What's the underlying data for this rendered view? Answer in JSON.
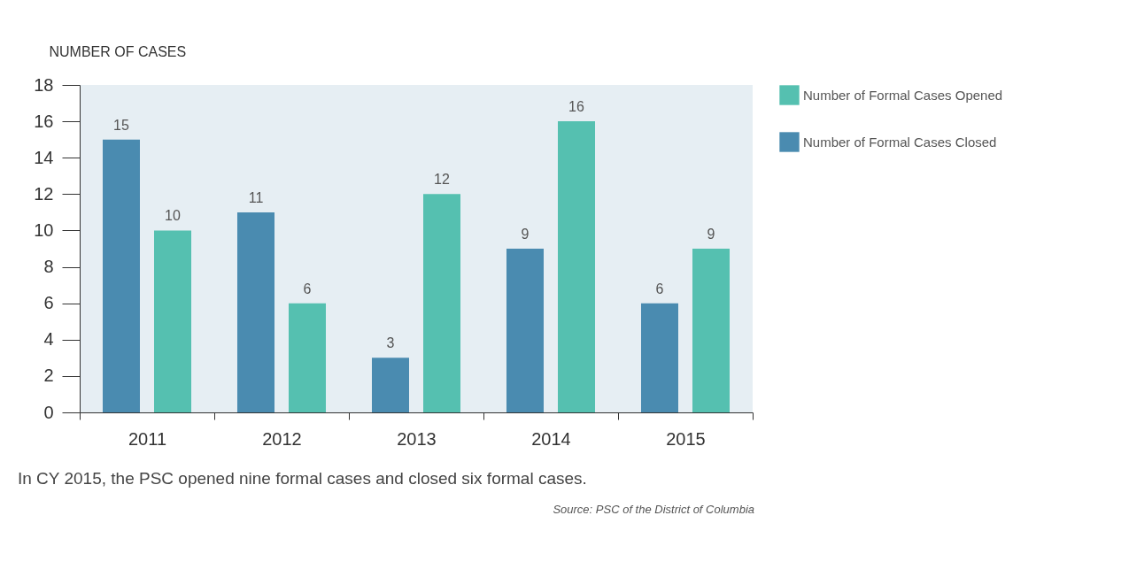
{
  "chart_data": {
    "type": "bar",
    "ylabel": "NUMBER OF CASES",
    "categories": [
      "2011",
      "2012",
      "2013",
      "2014",
      "2015"
    ],
    "series": [
      {
        "name": "Number of Formal Cases Closed",
        "color": "#4a8bb0",
        "values": [
          15,
          11,
          3,
          9,
          6
        ]
      },
      {
        "name": "Number of Formal Cases Opened",
        "color": "#55c0b0",
        "values": [
          10,
          6,
          12,
          16,
          9
        ]
      }
    ],
    "ylim": [
      0,
      18
    ],
    "yticks": [
      0,
      2,
      4,
      6,
      8,
      10,
      12,
      14,
      16,
      18
    ],
    "data_labels": true,
    "grid": false,
    "legend": "right",
    "annotations": [
      "In CY 2015, the PSC opened nine formal cases and closed six formal cases.",
      "Source: PSC of the District of Columbia"
    ]
  }
}
